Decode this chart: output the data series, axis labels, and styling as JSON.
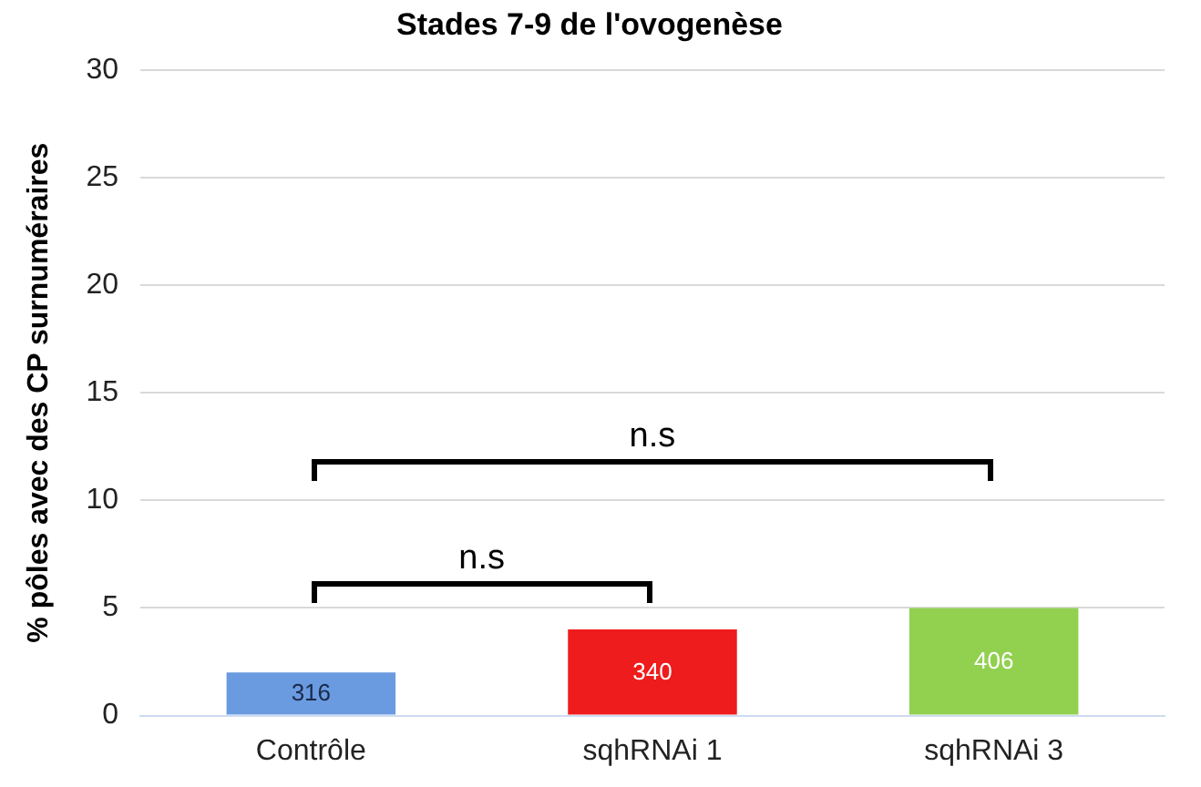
{
  "chart_data": {
    "type": "bar",
    "title": "Stades 7-9 de l'ovogenèse",
    "ylabel": "% pôles avec des CP surnuméraires",
    "categories": [
      "Contrôle",
      "sqhRNAi 1",
      "sqhRNAi 3"
    ],
    "values": [
      2.0,
      4.0,
      5.0
    ],
    "colors": [
      "#6a9be0",
      "#ee1c1c",
      "#92d050"
    ],
    "ylim": [
      0,
      30
    ],
    "yticks": [
      0,
      5,
      10,
      15,
      20,
      25,
      30
    ],
    "grid": "y",
    "legend": false,
    "annotations": [
      "n.s",
      "n.s",
      {
        "text": "316",
        "x": "Contrôle",
        "y": 2.0
      },
      {
        "text": "340",
        "x": "sqhRNAi 1",
        "y": 4.0
      },
      {
        "text": "406",
        "x": "sqhRNAi 3",
        "y": 5.0
      }
    ]
  }
}
